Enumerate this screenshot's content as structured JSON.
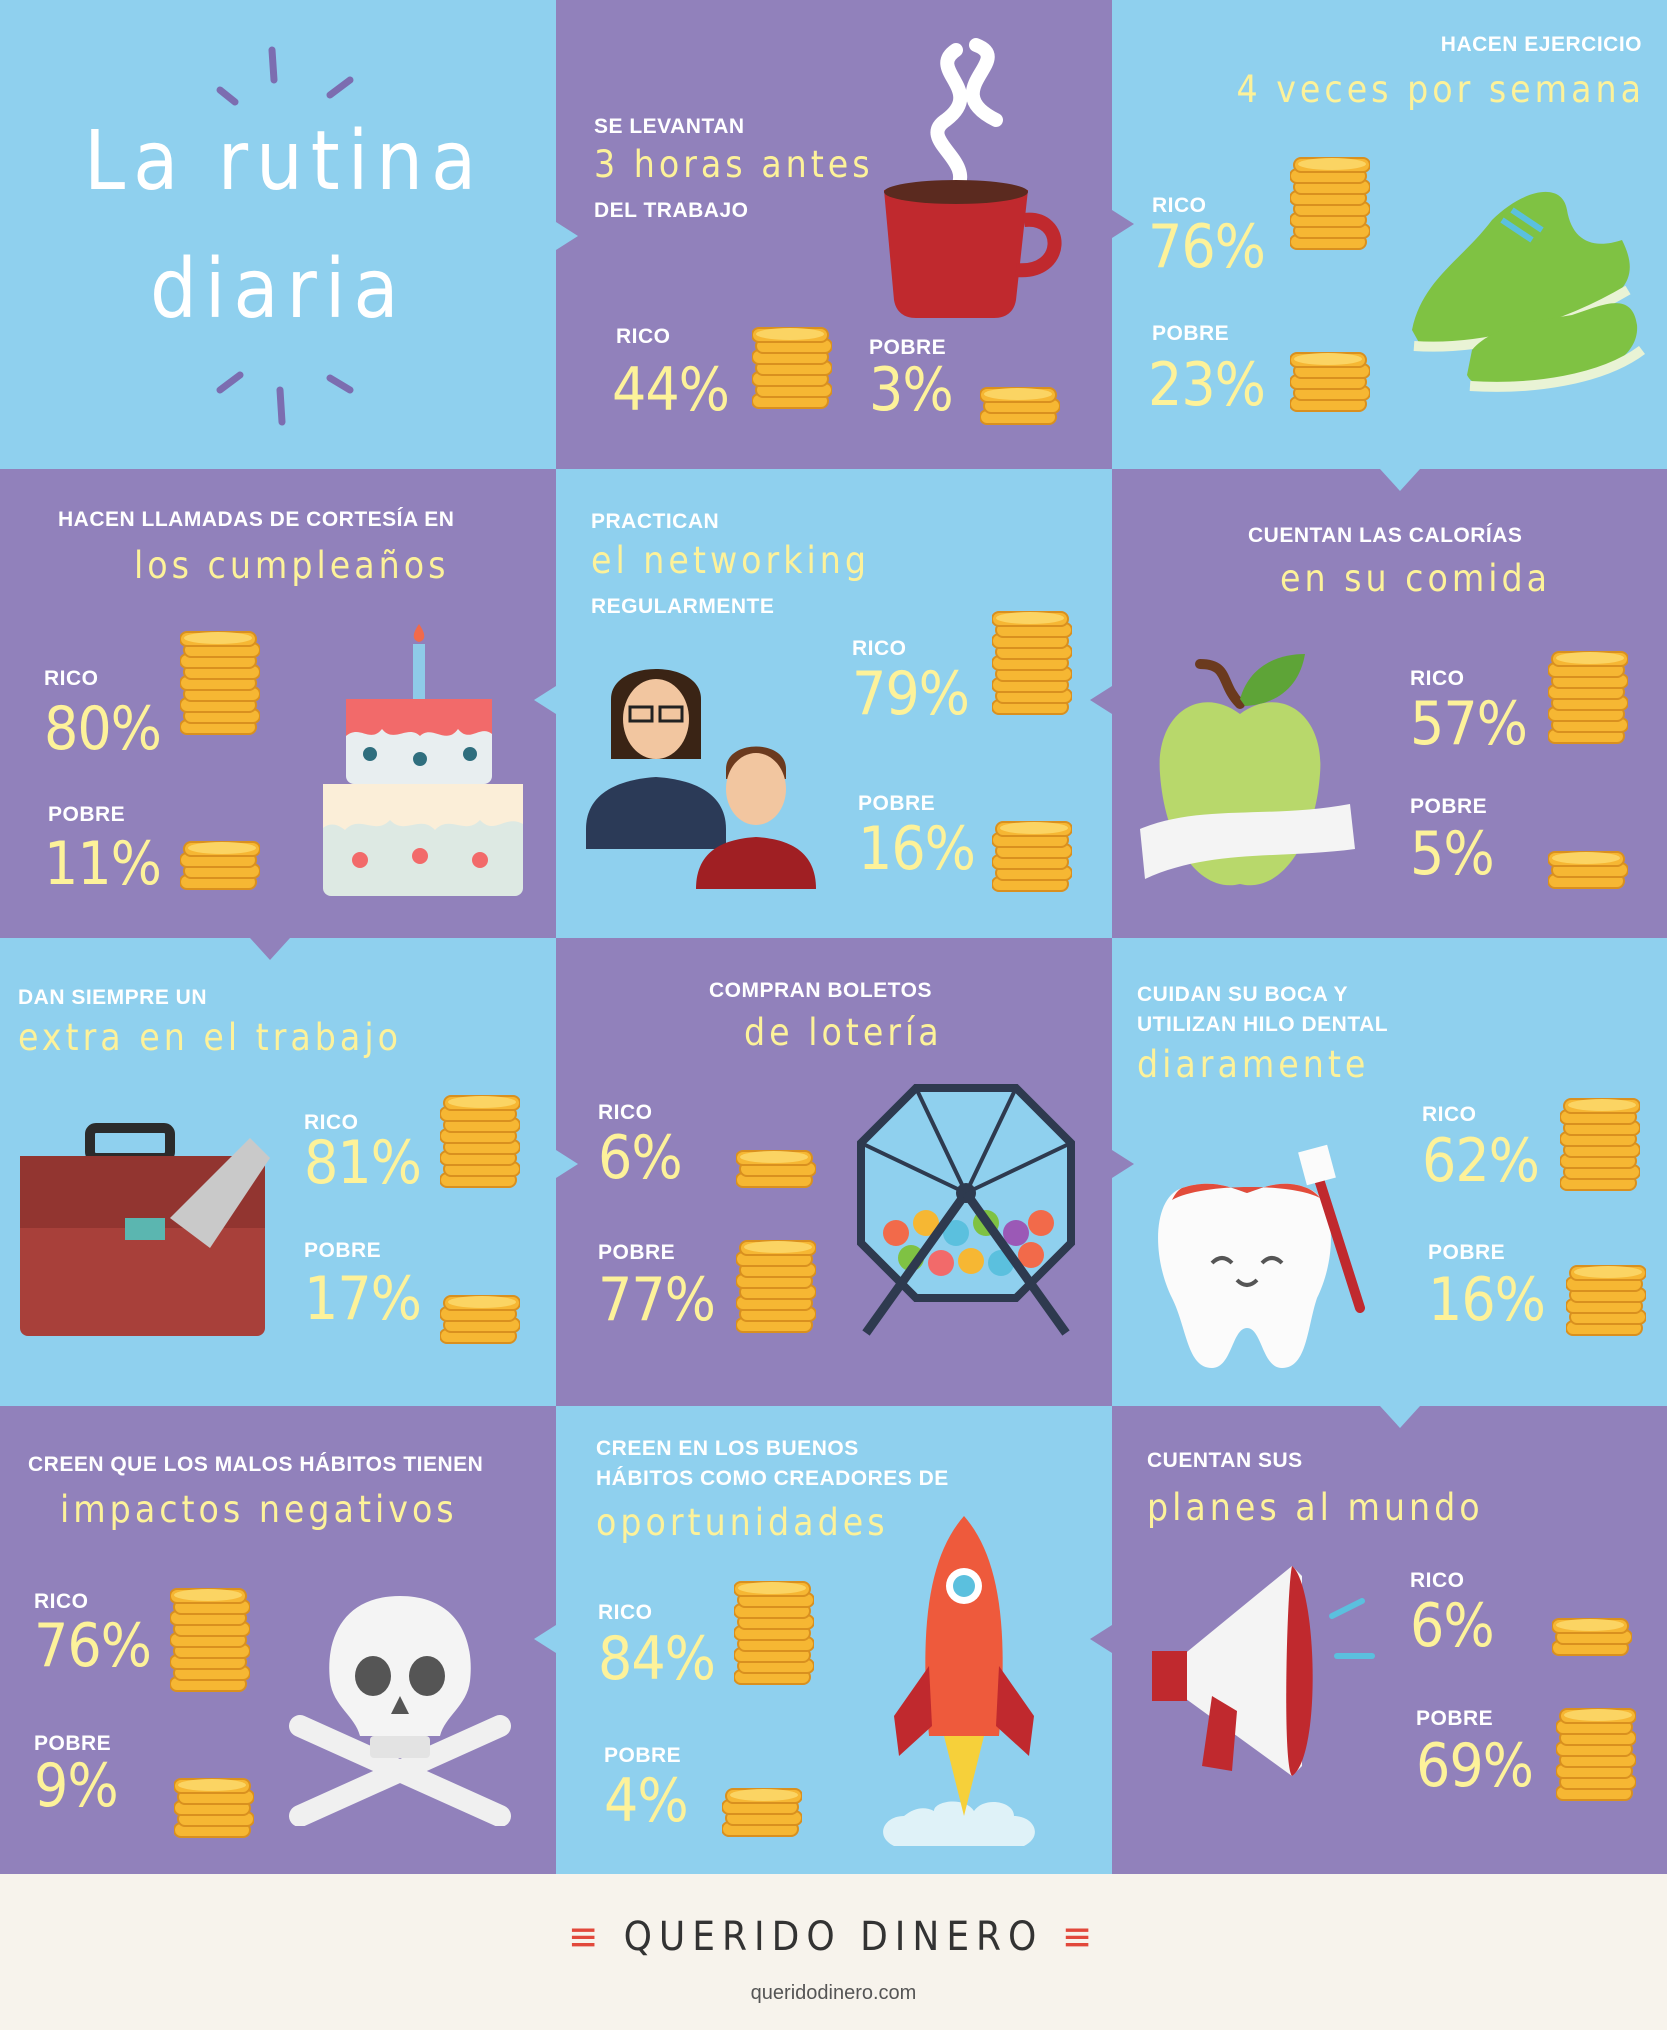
{
  "title": [
    "La rutina",
    "diaria"
  ],
  "labels": {
    "rico": "RICO",
    "pobre": "POBRE"
  },
  "colors": {
    "blue": "#8fd0ee",
    "purple": "#9181bb",
    "yellow": "#fdf29a",
    "coin": "#f6b733"
  },
  "tiles": [
    {
      "id": "levantan",
      "top": [
        "SE LEVANTAN"
      ],
      "highlight": "3 horas antes",
      "bottom": [
        "DEL TRABAJO"
      ],
      "rico": "44%",
      "pobre": "3%",
      "icon": "coffee-cup-icon"
    },
    {
      "id": "ejercicio",
      "top": [
        "HACEN EJERCICIO"
      ],
      "highlight": "4 veces por semana",
      "bottom": [],
      "rico": "76%",
      "pobre": "23%",
      "icon": "sneakers-icon"
    },
    {
      "id": "cumpleanos",
      "top": [
        "HACEN LLAMADAS DE CORTESÍA EN"
      ],
      "highlight": "los cumpleaños",
      "bottom": [],
      "rico": "80%",
      "pobre": "11%",
      "icon": "birthday-cake-icon"
    },
    {
      "id": "networking",
      "top": [
        "PRACTICAN"
      ],
      "highlight": "el networking",
      "bottom": [
        "REGULARMENTE"
      ],
      "rico": "79%",
      "pobre": "16%",
      "icon": "people-icon"
    },
    {
      "id": "calorias",
      "top": [
        "CUENTAN LAS CALORÍAS"
      ],
      "highlight": "en su comida",
      "bottom": [],
      "rico": "57%",
      "pobre": "5%",
      "icon": "apple-tape-icon"
    },
    {
      "id": "extra",
      "top": [
        "DAN SIEMPRE UN"
      ],
      "highlight": "extra en el trabajo",
      "bottom": [],
      "rico": "81%",
      "pobre": "17%",
      "icon": "briefcase-icon"
    },
    {
      "id": "loteria",
      "top": [
        "COMPRAN BOLETOS"
      ],
      "highlight": "de lotería",
      "bottom": [],
      "rico": "6%",
      "pobre": "77%",
      "icon": "lottery-drum-icon"
    },
    {
      "id": "boca",
      "top": [
        "CUIDAN SU BOCA Y",
        "UTILIZAN HILO DENTAL"
      ],
      "highlight": "diaramente",
      "bottom": [],
      "rico": "62%",
      "pobre": "16%",
      "icon": "tooth-icon"
    },
    {
      "id": "malos",
      "top": [
        "CREEN QUE LOS MALOS HÁBITOS TIENEN"
      ],
      "highlight": "impactos negativos",
      "bottom": [],
      "rico": "76%",
      "pobre": "9%",
      "icon": "skull-icon"
    },
    {
      "id": "buenos",
      "top": [
        "CREEN EN LOS BUENOS",
        "HÁBITOS COMO CREADORES DE"
      ],
      "highlight": "oportunidades",
      "bottom": [],
      "rico": "84%",
      "pobre": "4%",
      "icon": "rocket-icon"
    },
    {
      "id": "planes",
      "top": [
        "CUENTAN SUS"
      ],
      "highlight": "planes al mundo",
      "bottom": [],
      "rico": "6%",
      "pobre": "69%",
      "icon": "megaphone-icon"
    }
  ],
  "footer": {
    "brand": "QUERIDO DINERO",
    "site": "queridodinero.com"
  }
}
